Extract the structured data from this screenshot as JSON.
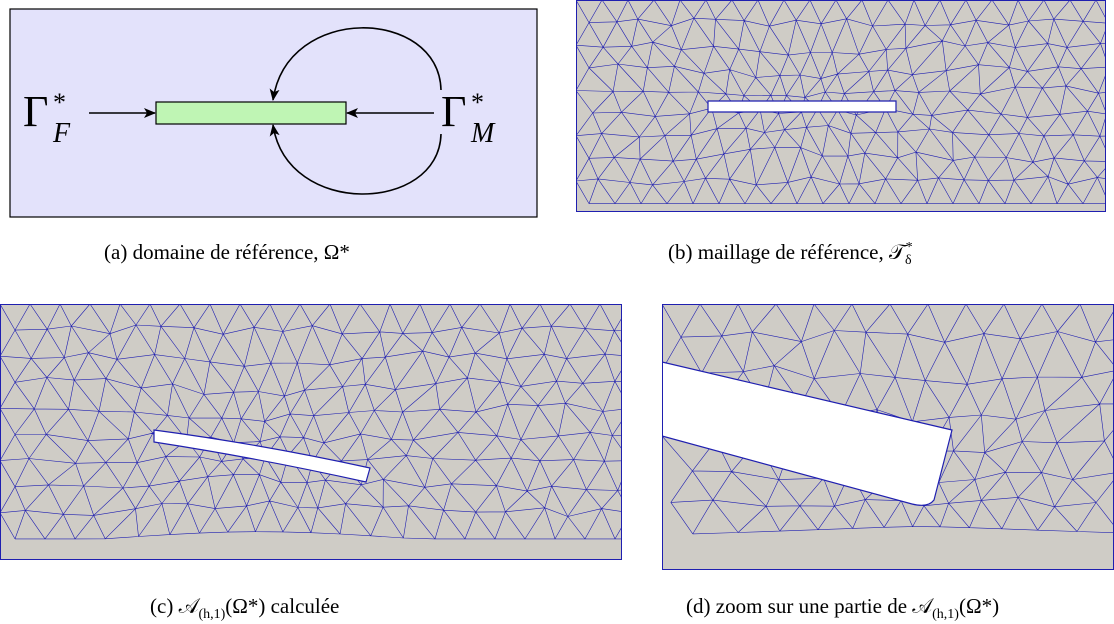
{
  "panels": {
    "a": {
      "caption_tag": "(a)",
      "caption_text": "domaine de référence, Ω*",
      "gamma_left": "Γ",
      "gamma_left_sup": "*",
      "gamma_left_sub": "F",
      "gamma_right": "Γ",
      "gamma_right_sup": "*",
      "gamma_right_sub": "M",
      "colors": {
        "background": "#e3e2fb",
        "bar": "#bff5b4",
        "stroke": "#000000"
      }
    },
    "b": {
      "caption_tag": "(b)",
      "caption_text": "maillage de référence, 𝒯",
      "caption_sub": "δ",
      "caption_sup": "*",
      "colors": {
        "background": "#cfccc6",
        "mesh": "#1f1fb0"
      }
    },
    "c": {
      "caption_tag": "(c)",
      "caption_text": "𝒜",
      "caption_sub": "(h,1)",
      "caption_rest": "(Ω*) calculée"
    },
    "d": {
      "caption_tag": "(d)",
      "caption_text": "zoom sur une partie de 𝒜",
      "caption_sub": "(h,1)",
      "caption_rest": "(Ω*)"
    }
  }
}
